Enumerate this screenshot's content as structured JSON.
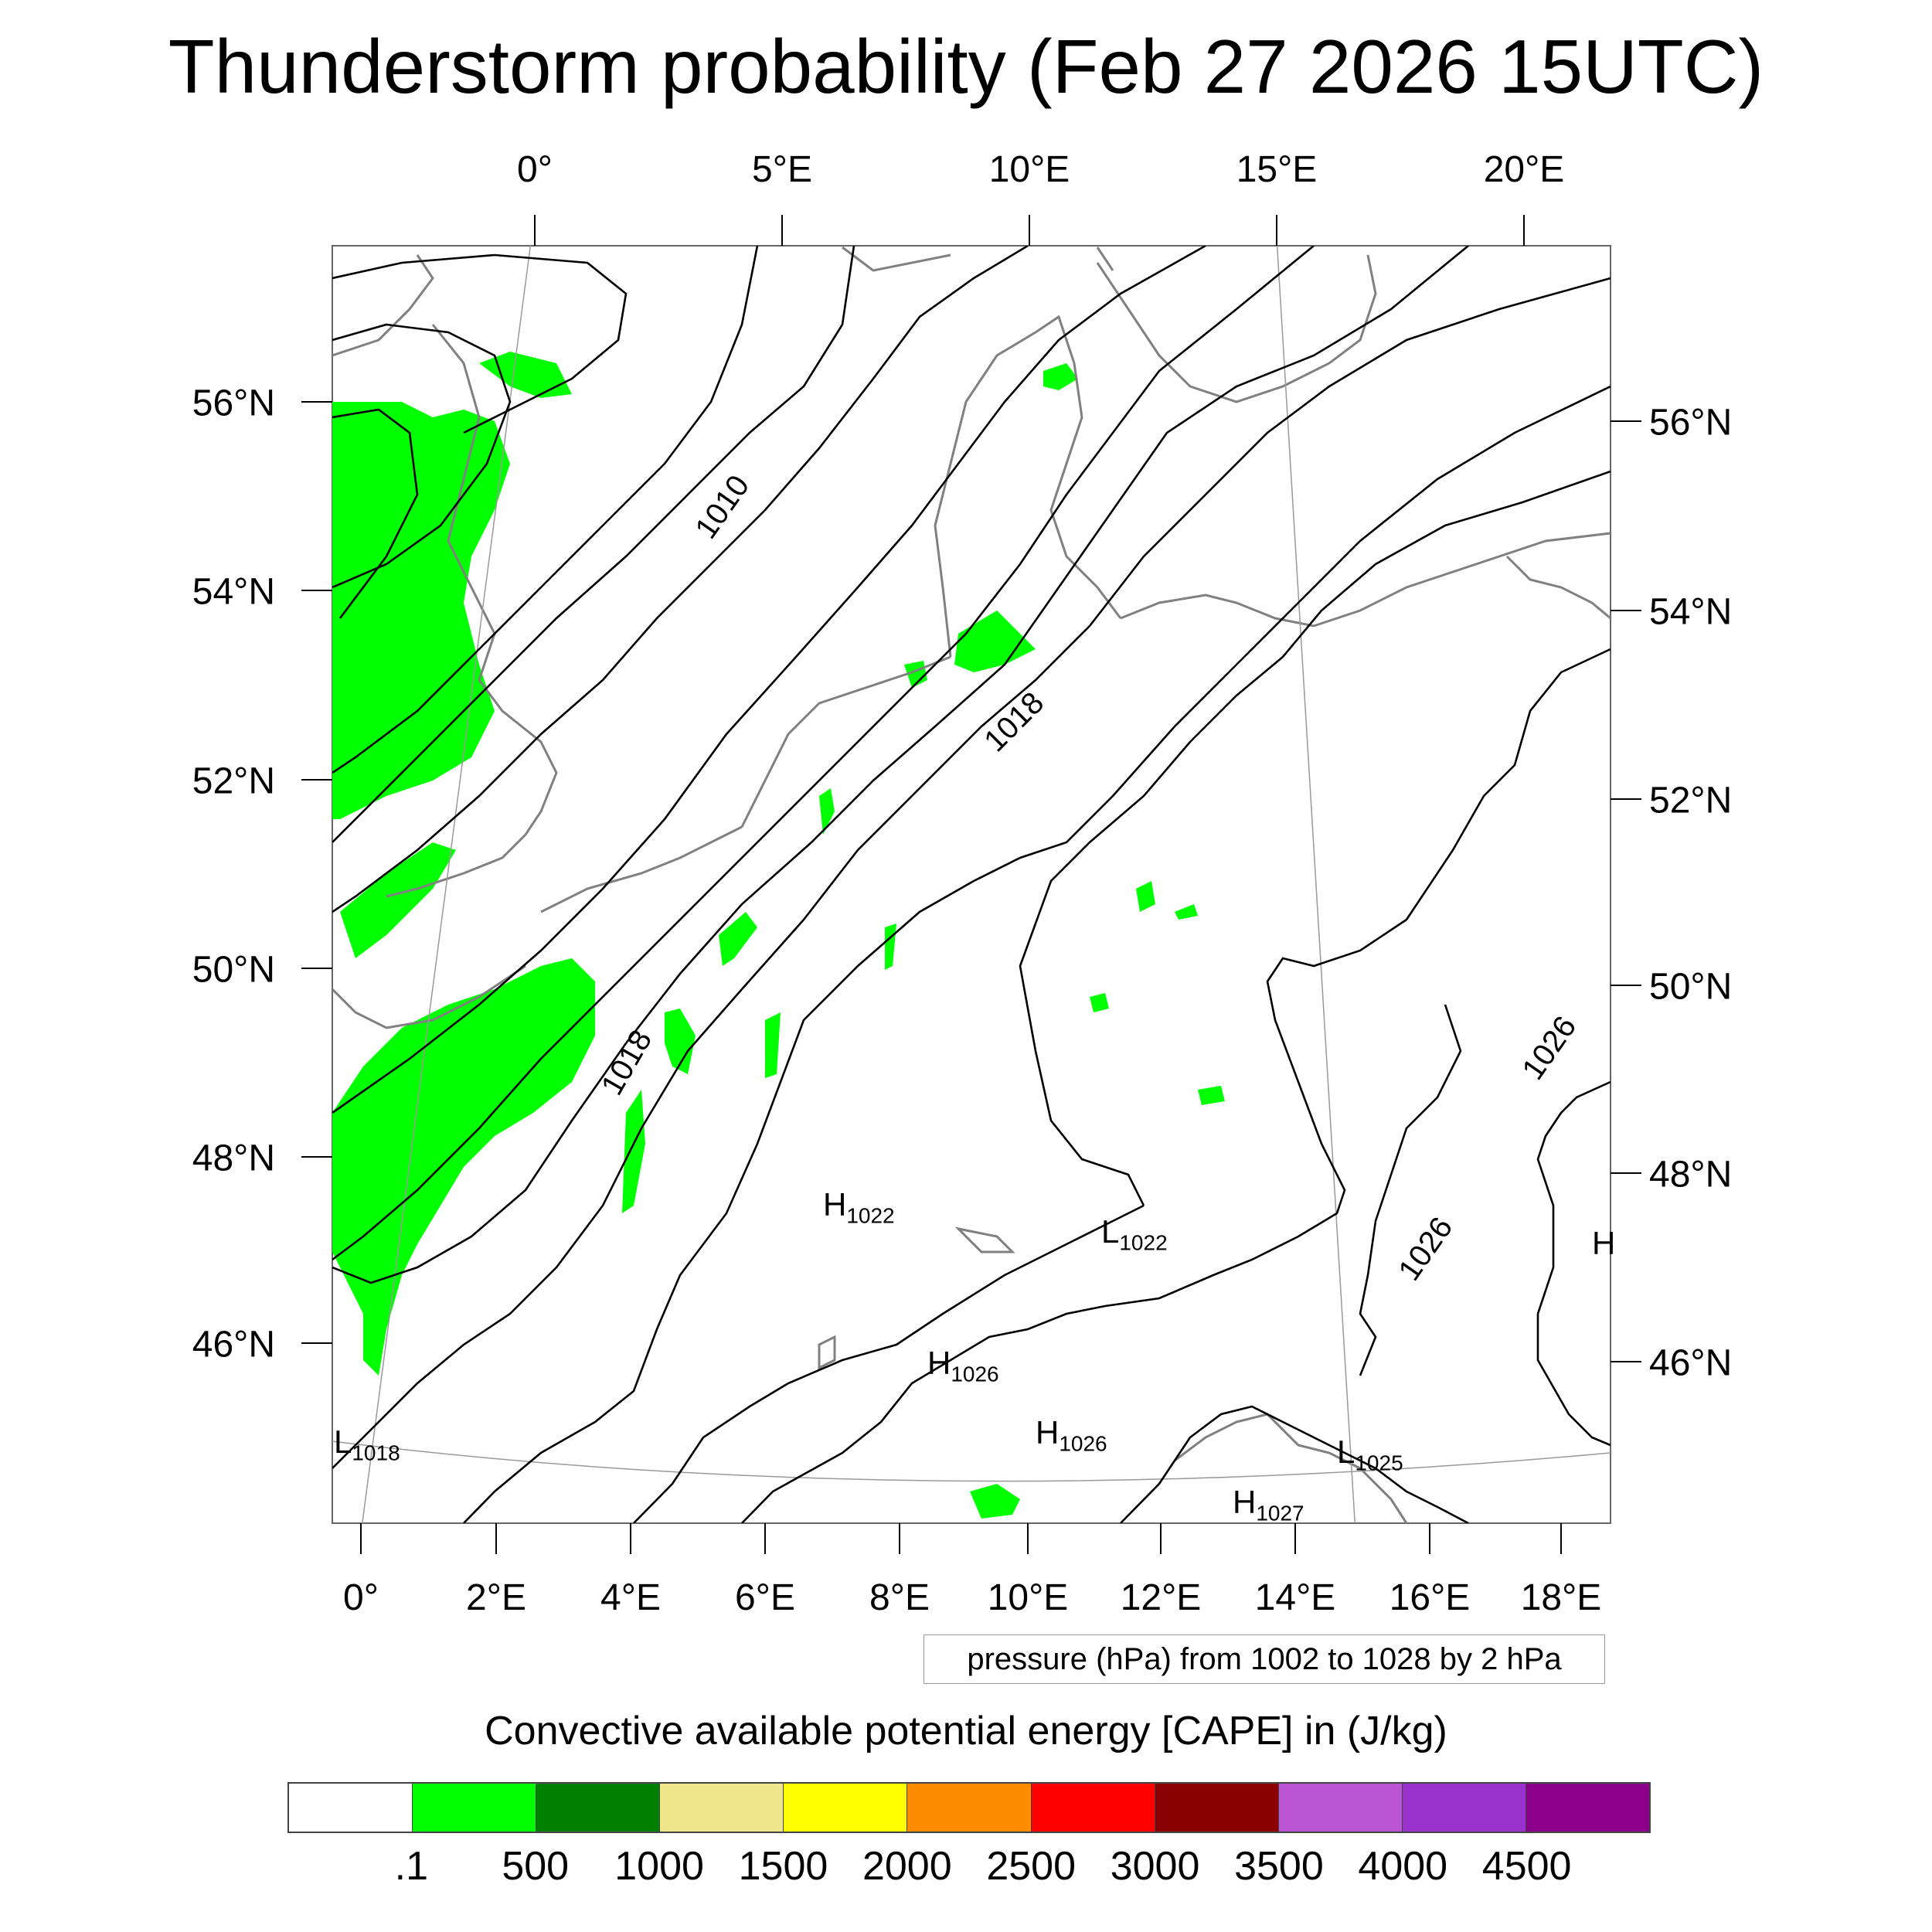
{
  "title": "Thunderstorm probability (Feb 27 2026 15UTC)",
  "axes": {
    "top_lon": [
      "0°",
      "5°E",
      "10°E",
      "15°E",
      "20°E"
    ],
    "bottom_lon": [
      "0°",
      "2°E",
      "4°E",
      "6°E",
      "8°E",
      "10°E",
      "12°E",
      "14°E",
      "16°E",
      "18°E"
    ],
    "left_lat": [
      "56°N",
      "54°N",
      "52°N",
      "50°N",
      "48°N",
      "46°N"
    ],
    "right_lat": [
      "56°N",
      "54°N",
      "52°N",
      "50°N",
      "48°N",
      "46°N"
    ]
  },
  "isobar_labels": [
    "1010",
    "1018",
    "1018",
    "1026",
    "1026"
  ],
  "pressure_centers": [
    {
      "type": "H",
      "value": "1022"
    },
    {
      "type": "L",
      "value": "1022"
    },
    {
      "type": "H",
      "value": "1026"
    },
    {
      "type": "H",
      "value": "1026"
    },
    {
      "type": "L",
      "value": "1018"
    },
    {
      "type": "L",
      "value": "1025"
    },
    {
      "type": "H",
      "value": "1027"
    },
    {
      "type": "H",
      "value": ""
    }
  ],
  "contour_info": "pressure (hPa) from 1002 to 1028 by 2 hPa",
  "colorbar": {
    "title": "Convective available potential energy [CAPE] in (J/kg)",
    "colors": [
      "#ffffff",
      "#00ff00",
      "#008000",
      "#f0e68c",
      "#ffff00",
      "#ff8c00",
      "#ff0000",
      "#8b0000",
      "#ba55d3",
      "#9932cc",
      "#8b008b"
    ],
    "labels": [
      ".1",
      "500",
      "1000",
      "1500",
      "2000",
      "2500",
      "3000",
      "3500",
      "4000",
      "4500"
    ]
  }
}
